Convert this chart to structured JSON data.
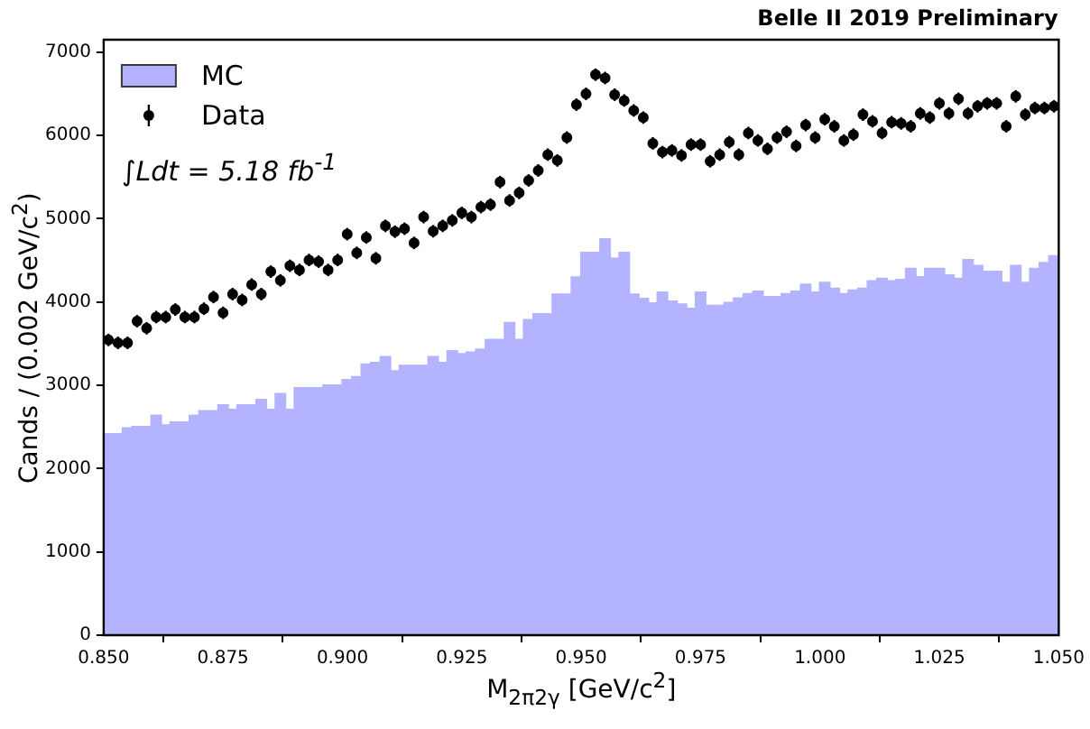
{
  "chart_data": {
    "type": "histogram",
    "title": "Belle II 2019 Preliminary",
    "xlabel": "M$_{2π2γ}$ [GeV/c$^{2}$]",
    "ylabel": "Cands / (0.002 GeV/c$^{2}$)",
    "annotations": [
      "∫Ldt = 5.18 fb$^{-1}$"
    ],
    "legend": "top left",
    "marker": "circle",
    "xlim": [
      0.85,
      1.05
    ],
    "xticks": [
      {
        "value": 0.85,
        "label": "0.850"
      },
      {
        "value": 0.875,
        "label": "0.875"
      },
      {
        "value": 0.9,
        "label": "0.900"
      },
      {
        "value": 0.925,
        "label": "0.925"
      },
      {
        "value": 0.95,
        "label": "0.950"
      },
      {
        "value": 0.975,
        "label": "0.975"
      },
      {
        "value": 1.0,
        "label": "1.000"
      },
      {
        "value": 1.025,
        "label": "1.025"
      },
      {
        "value": 1.05,
        "label": "1.050"
      }
    ],
    "ylim": [
      0,
      7150
    ],
    "yticks": [
      0,
      1000,
      2000,
      3000,
      4000,
      5000,
      6000,
      7000
    ],
    "bins": [
      0.85,
      0.852,
      0.854,
      0.856,
      0.858,
      0.86,
      0.862,
      0.864,
      0.866,
      0.868,
      0.87,
      0.872,
      0.874,
      0.876,
      0.878,
      0.88,
      0.882,
      0.884,
      0.886,
      0.888,
      0.89,
      0.892,
      0.894,
      0.896,
      0.898,
      0.9,
      0.902,
      0.904,
      0.906,
      0.908,
      0.91,
      0.912,
      0.914,
      0.916,
      0.918,
      0.92,
      0.922,
      0.924,
      0.926,
      0.928,
      0.93,
      0.932,
      0.934,
      0.936,
      0.938,
      0.94,
      0.942,
      0.944,
      0.946,
      0.948,
      0.95,
      0.952,
      0.954,
      0.956,
      0.958,
      0.96,
      0.962,
      0.964,
      0.966,
      0.968,
      0.97,
      0.972,
      0.974,
      0.976,
      0.978,
      0.98,
      0.982,
      0.984,
      0.986,
      0.988,
      0.99,
      0.992,
      0.994,
      0.996,
      0.998,
      1.0,
      1.002,
      1.004,
      1.006,
      1.008,
      1.01,
      1.012,
      1.014,
      1.016,
      1.018,
      1.02,
      1.022,
      1.024,
      1.026,
      1.028,
      1.03,
      1.032,
      1.034,
      1.036,
      1.038,
      1.04,
      1.042,
      1.044,
      1.046,
      1.048,
      1.05
    ],
    "series": [
      {
        "name": "MC",
        "color": "#b3b3ff",
        "values": [
          2415,
          2415,
          2485,
          2500,
          2500,
          2635,
          2520,
          2555,
          2555,
          2635,
          2690,
          2690,
          2760,
          2705,
          2760,
          2760,
          2825,
          2705,
          2895,
          2705,
          2965,
          2965,
          2965,
          3000,
          3000,
          3065,
          3100,
          3250,
          3270,
          3340,
          3170,
          3235,
          3235,
          3235,
          3340,
          3270,
          3410,
          3375,
          3395,
          3430,
          3545,
          3545,
          3750,
          3545,
          3785,
          3855,
          3855,
          4090,
          4090,
          4295,
          4590,
          4590,
          4755,
          4520,
          4590,
          4090,
          4040,
          3985,
          4115,
          4005,
          3970,
          3920,
          4115,
          3955,
          3955,
          3990,
          4045,
          4095,
          4125,
          4060,
          4060,
          4095,
          4125,
          4210,
          4115,
          4230,
          4160,
          4095,
          4140,
          4160,
          4250,
          4280,
          4250,
          4265,
          4400,
          4300,
          4400,
          4400,
          4320,
          4280,
          4505,
          4435,
          4365,
          4365,
          4230,
          4435,
          4230,
          4400,
          4470,
          4550
        ]
      },
      {
        "name": "Data",
        "type": "scatter",
        "color": "#000000",
        "x": [
          0.851,
          0.853,
          0.855,
          0.857,
          0.859,
          0.861,
          0.863,
          0.865,
          0.867,
          0.869,
          0.871,
          0.873,
          0.875,
          0.877,
          0.879,
          0.881,
          0.883,
          0.885,
          0.887,
          0.889,
          0.891,
          0.893,
          0.895,
          0.897,
          0.899,
          0.901,
          0.903,
          0.905,
          0.907,
          0.909,
          0.911,
          0.913,
          0.915,
          0.917,
          0.919,
          0.921,
          0.923,
          0.925,
          0.927,
          0.929,
          0.931,
          0.933,
          0.935,
          0.937,
          0.939,
          0.941,
          0.943,
          0.945,
          0.947,
          0.949,
          0.951,
          0.953,
          0.955,
          0.957,
          0.959,
          0.961,
          0.963,
          0.965,
          0.967,
          0.969,
          0.971,
          0.973,
          0.975,
          0.977,
          0.979,
          0.981,
          0.983,
          0.985,
          0.987,
          0.989,
          0.991,
          0.993,
          0.995,
          0.997,
          0.999,
          1.001,
          1.003,
          1.005,
          1.007,
          1.009,
          1.011,
          1.013,
          1.015,
          1.017,
          1.019,
          1.021,
          1.023,
          1.025,
          1.027,
          1.029,
          1.031,
          1.033,
          1.035,
          1.037,
          1.039,
          1.041,
          1.043,
          1.045,
          1.047,
          1.049
        ],
        "values": [
          3545,
          3510,
          3510,
          3770,
          3685,
          3820,
          3820,
          3910,
          3820,
          3820,
          3920,
          4060,
          3870,
          4095,
          4025,
          4210,
          4095,
          4365,
          4260,
          4435,
          4385,
          4505,
          4485,
          4385,
          4505,
          4815,
          4590,
          4775,
          4525,
          4915,
          4845,
          4880,
          4710,
          5020,
          4850,
          4915,
          4980,
          5070,
          5020,
          5140,
          5170,
          5440,
          5220,
          5310,
          5460,
          5580,
          5770,
          5700,
          5975,
          6370,
          6500,
          6730,
          6690,
          6490,
          6420,
          6300,
          6215,
          5905,
          5800,
          5820,
          5760,
          5890,
          5890,
          5690,
          5770,
          5920,
          5770,
          6030,
          5940,
          5840,
          5975,
          6045,
          5875,
          6125,
          5975,
          6195,
          6110,
          5940,
          6010,
          6250,
          6170,
          6030,
          6160,
          6145,
          6110,
          6265,
          6215,
          6385,
          6265,
          6440,
          6265,
          6350,
          6385,
          6385,
          6110,
          6470,
          6250,
          6330,
          6330,
          6350
        ],
        "errors": [
          75,
          75,
          75,
          75,
          75,
          75,
          75,
          75,
          75,
          75,
          75,
          75,
          75,
          75,
          75,
          75,
          75,
          75,
          75,
          75,
          75,
          75,
          75,
          75,
          75,
          75,
          75,
          75,
          75,
          75,
          75,
          75,
          75,
          75,
          75,
          75,
          75,
          75,
          75,
          75,
          75,
          75,
          75,
          75,
          75,
          75,
          75,
          75,
          75,
          75,
          75,
          75,
          75,
          75,
          75,
          75,
          75,
          75,
          75,
          75,
          75,
          75,
          75,
          75,
          75,
          75,
          75,
          75,
          75,
          75,
          75,
          75,
          75,
          75,
          75,
          75,
          75,
          75,
          75,
          75,
          75,
          75,
          75,
          75,
          75,
          75,
          75,
          75,
          75,
          75,
          75,
          75,
          75,
          75,
          75,
          75,
          75,
          75,
          75,
          75
        ]
      }
    ]
  }
}
